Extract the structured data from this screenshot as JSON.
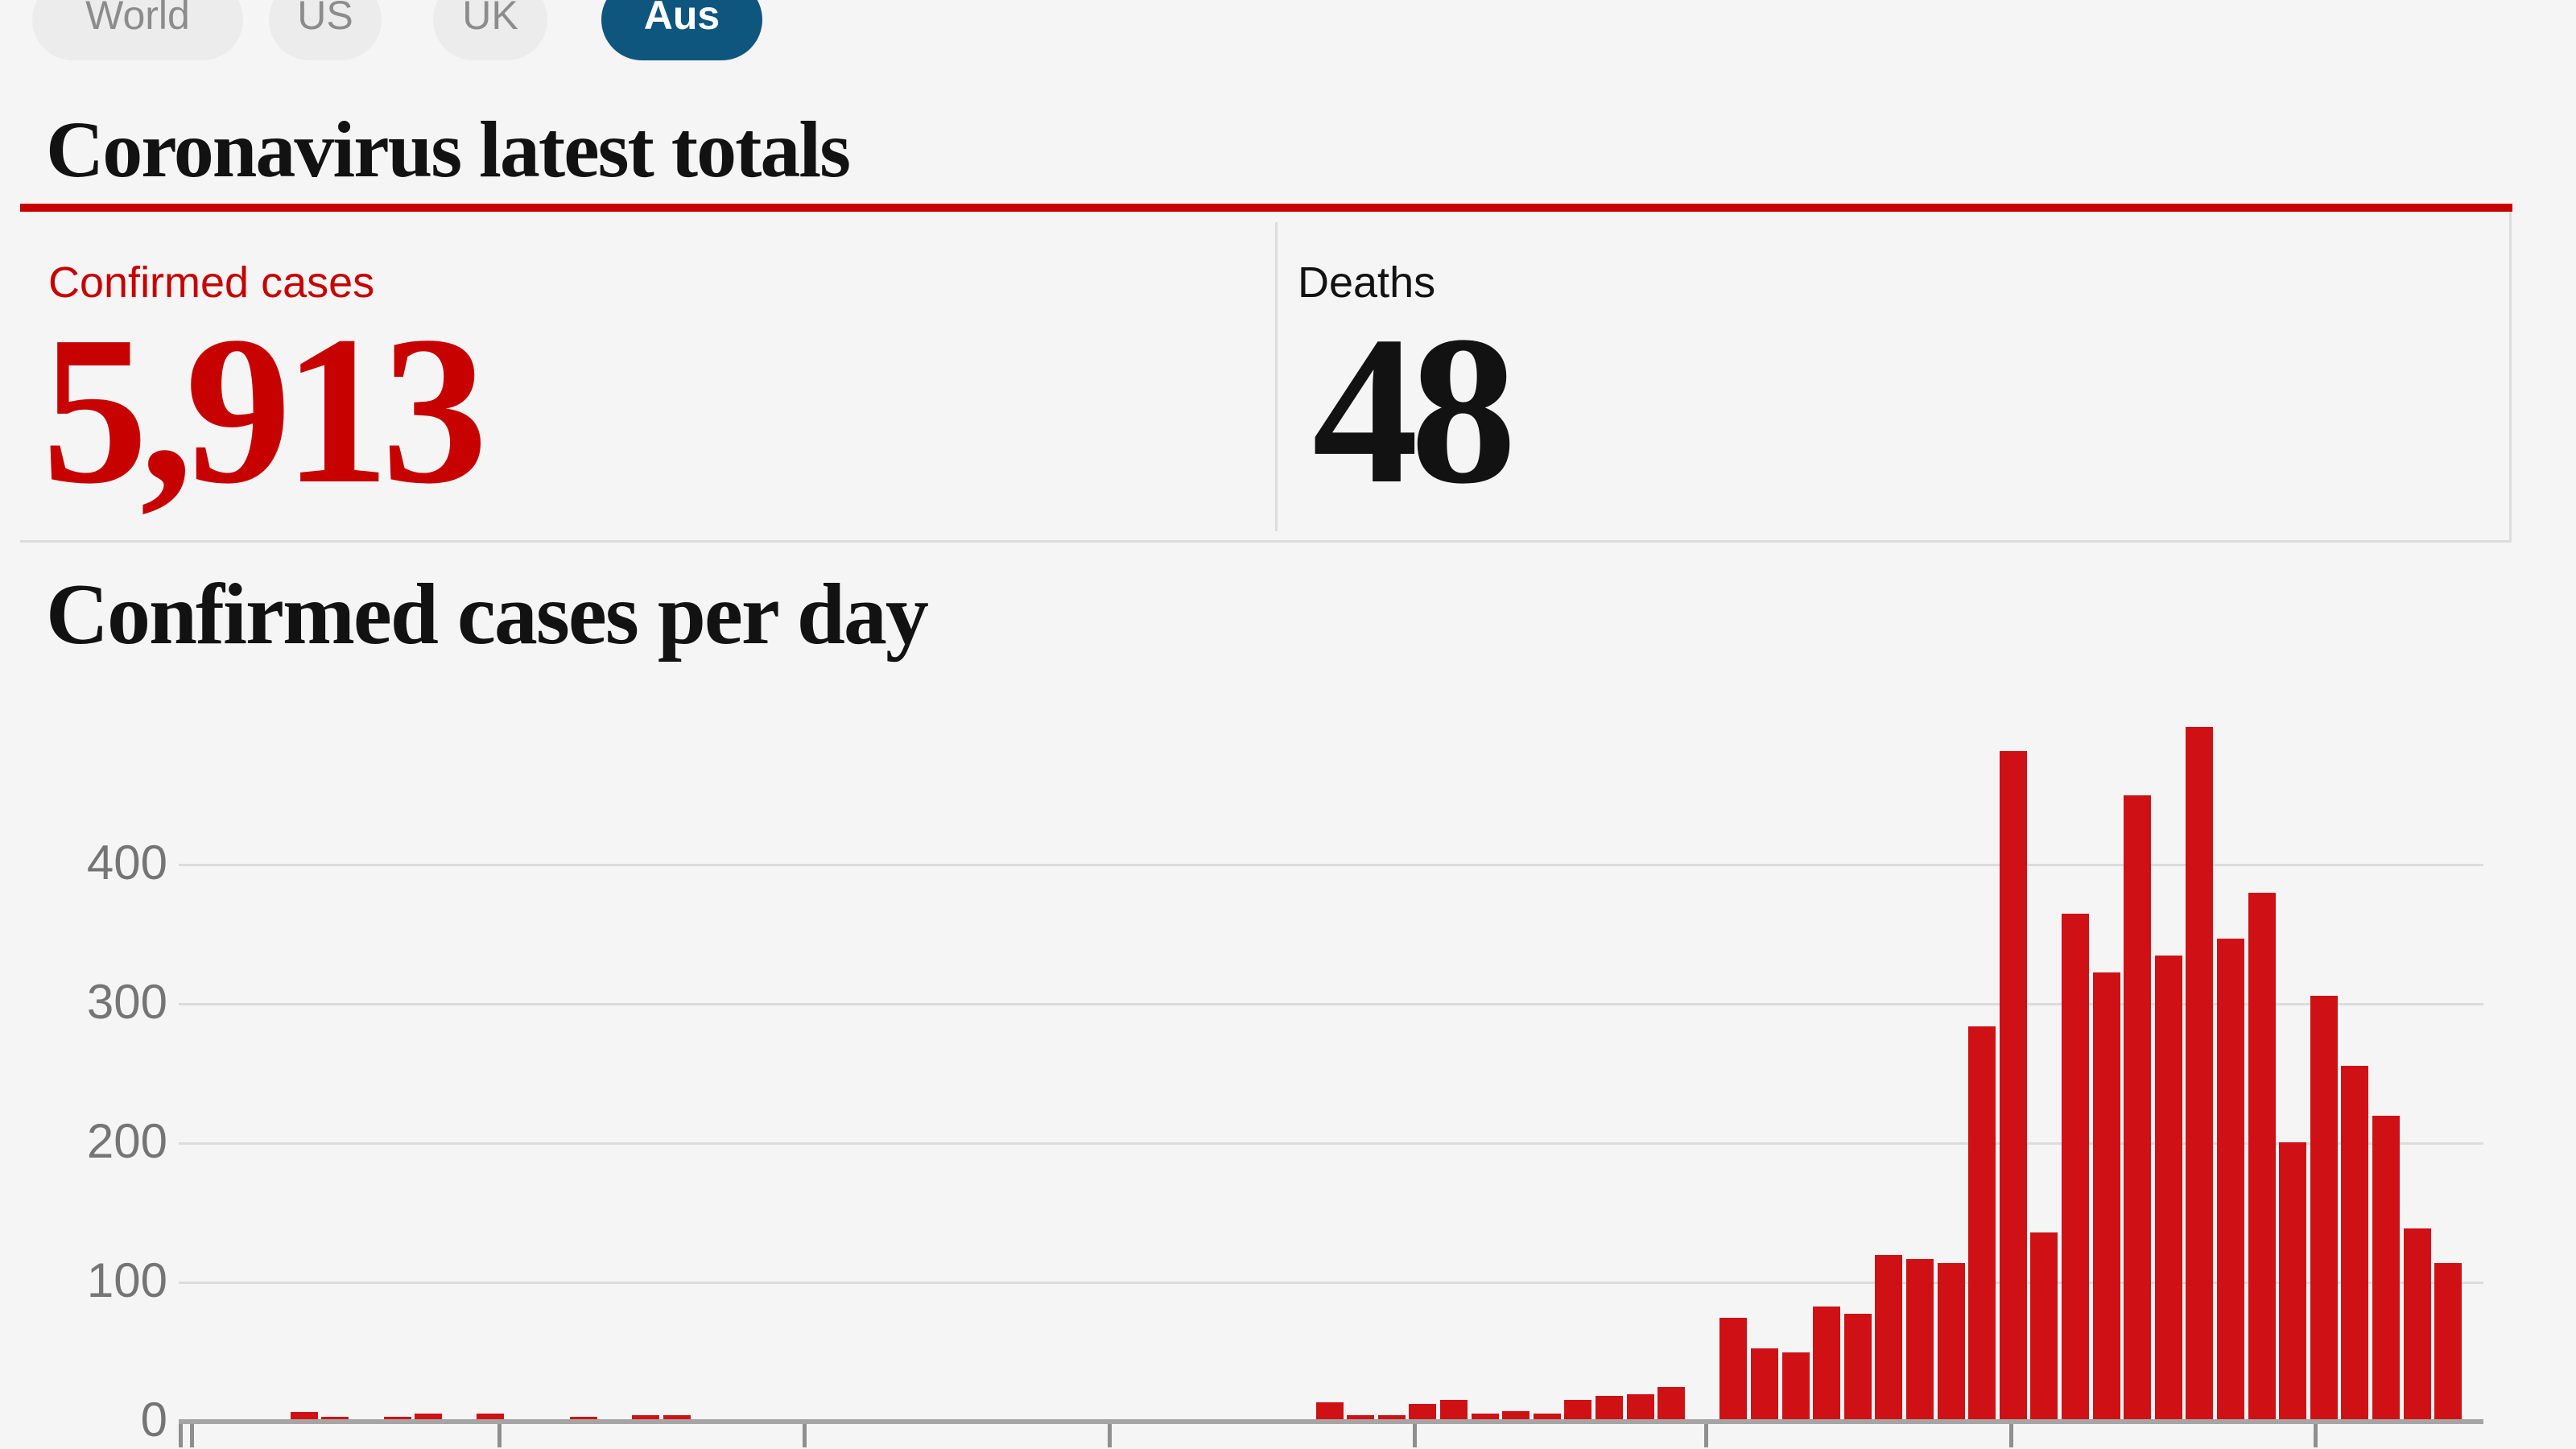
{
  "tabs": [
    {
      "label": "World",
      "active": false
    },
    {
      "label": "US",
      "active": false
    },
    {
      "label": "UK",
      "active": false
    },
    {
      "label": "Aus",
      "active": true
    }
  ],
  "totals": {
    "title": "Coronavirus latest totals",
    "stats": [
      {
        "label": "Confirmed cases",
        "value": "5,913",
        "color": "#c70000"
      },
      {
        "label": "Deaths",
        "value": "48",
        "color": "#121212"
      }
    ]
  },
  "chart": {
    "title": "Confirmed cases per day"
  },
  "chart_data": {
    "type": "bar",
    "title": "Confirmed cases per day",
    "xlabel": "",
    "ylabel": "",
    "ylim": [
      0,
      500
    ],
    "yticks": [
      0,
      100,
      200,
      300,
      400
    ],
    "grid": true,
    "legend": false,
    "bar_color": "#cf1115",
    "accent_red": "#c70000",
    "tab_active_blue": "#0e567e",
    "values": [
      0,
      0,
      0,
      5,
      2,
      0,
      2,
      4,
      0,
      4,
      0,
      0,
      2,
      0,
      3,
      3,
      0,
      0,
      0,
      0,
      0,
      0,
      0,
      0,
      0,
      0,
      0,
      0,
      0,
      0,
      0,
      0,
      0,
      0,
      0,
      0,
      12,
      3,
      3,
      11,
      14,
      4,
      6,
      4,
      14,
      17,
      18,
      23,
      0,
      73,
      51,
      48,
      81,
      76,
      118,
      115,
      112,
      282,
      480,
      134,
      363,
      321,
      448,
      333,
      497,
      345,
      378,
      199,
      304,
      254,
      218,
      137,
      112,
      0
    ]
  }
}
